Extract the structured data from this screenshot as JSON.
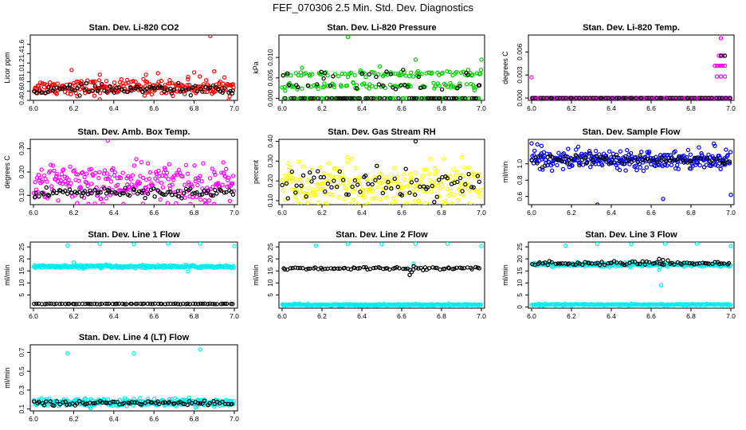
{
  "page_title": "FEF_070306  2.5 Min. Std. Dev. Diagnostics",
  "colors": {
    "red": "#ff0000",
    "green": "#00cc00",
    "magenta": "#ff00ff",
    "yellow": "#ffff00",
    "blue": "#0000ff",
    "cyan": "#00eeee",
    "black": "#000000"
  },
  "chart_data": [
    {
      "type": "scatter",
      "title": "Stan. Dev. Li-820 CO2",
      "ylabel": "Licor ppm",
      "xlim": [
        6.0,
        7.0
      ],
      "x_ticks": [
        "6.0",
        "6.2",
        "6.4",
        "6.6",
        "6.8",
        "7.0"
      ],
      "ylim": [
        0.4,
        1.8
      ],
      "y_ticks": [
        "0.4",
        "0.6",
        "0.8",
        "1.0",
        "1.2",
        "1.4",
        "1.6"
      ],
      "series": [
        {
          "name": "main",
          "color": "red",
          "mean": 0.68,
          "spread": 0.08,
          "n": 240,
          "outliers": [
            [
              6.88,
              1.78
            ],
            [
              6.19,
              1.05
            ],
            [
              6.8,
              1.0
            ],
            [
              6.33,
              0.95
            ],
            [
              6.9,
              1.02
            ],
            [
              6.62,
              0.98
            ],
            [
              6.33,
              0.42
            ],
            [
              6.56,
              0.95
            ],
            [
              6.77,
              0.9
            ]
          ]
        },
        {
          "name": "second",
          "color": "black",
          "mean": 0.63,
          "spread": 0.05,
          "n": 80,
          "outliers": [
            [
              6.99,
              0.55
            ]
          ]
        }
      ]
    },
    {
      "type": "scatter",
      "title": "Stan. Dev. Li-820 Pressure",
      "ylabel": "kPa",
      "xlim": [
        6.0,
        7.0
      ],
      "x_ticks": [
        "6.0",
        "6.2",
        "6.4",
        "6.6",
        "6.8",
        "7.0"
      ],
      "ylim": [
        -0.0005,
        0.0155
      ],
      "y_ticks": [
        "0.000",
        "0.005",
        "0.010"
      ],
      "series": [
        {
          "name": "main",
          "color": "green",
          "mode": "band",
          "levels": [
            0.0,
            0.003,
            0.006
          ],
          "n": 260,
          "outliers": [
            [
              6.33,
              0.015
            ],
            [
              6.67,
              0.0095
            ],
            [
              7.0,
              0.0095
            ],
            [
              6.1,
              0.0075
            ],
            [
              6.49,
              0.0078
            ]
          ]
        },
        {
          "name": "second",
          "color": "black",
          "mode": "band",
          "levels": [
            0.0,
            0.0,
            0.0,
            0.003,
            0.006
          ],
          "n": 90,
          "outliers": []
        }
      ]
    },
    {
      "type": "scatter",
      "title": "Stan. Dev. Li-820 Temp.",
      "ylabel": "degrees C",
      "xlim": [
        6.0,
        7.0
      ],
      "x_ticks": [
        "6.0",
        "6.2",
        "6.4",
        "6.6",
        "6.8",
        "7.0"
      ],
      "ylim": [
        -0.0003,
        0.0082
      ],
      "y_ticks": [
        "0.000",
        "0.003",
        "0.006"
      ],
      "series": [
        {
          "name": "main",
          "color": "magenta",
          "mode": "flat",
          "levels": [
            0.0
          ],
          "n": 220,
          "outliers": [
            [
              6.0,
              0.0027
            ],
            [
              6.92,
              0.0042
            ],
            [
              6.93,
              0.0042
            ],
            [
              6.94,
              0.0042
            ],
            [
              6.95,
              0.0042
            ],
            [
              6.96,
              0.0042
            ],
            [
              6.97,
              0.0042
            ],
            [
              6.93,
              0.0028
            ],
            [
              6.95,
              0.0028
            ],
            [
              6.97,
              0.0028
            ],
            [
              6.94,
              0.0055
            ],
            [
              6.96,
              0.0055
            ],
            [
              6.95,
              0.0078
            ],
            [
              6.92,
              0.0042
            ]
          ]
        },
        {
          "name": "second",
          "color": "black",
          "mode": "flat",
          "levels": [
            0.0
          ],
          "n": 60,
          "outliers": [
            [
              6.95,
              0.0055
            ],
            [
              6.97,
              0.0055
            ]
          ]
        }
      ]
    },
    {
      "type": "scatter",
      "title": "Stan. Dev. Amb. Box Temp.",
      "ylabel": "degrees C",
      "xlim": [
        6.0,
        7.0
      ],
      "x_ticks": [
        "6.0",
        "6.2",
        "6.4",
        "6.6",
        "6.8",
        "7.0"
      ],
      "ylim": [
        0.06,
        0.34
      ],
      "y_ticks": [
        "0.10",
        "0.20",
        "0.30"
      ],
      "series": [
        {
          "name": "main",
          "color": "magenta",
          "mean": 0.15,
          "spread": 0.045,
          "n": 260,
          "outliers": [
            [
              6.37,
              0.335
            ]
          ]
        },
        {
          "name": "second",
          "color": "black",
          "mean": 0.112,
          "spread": 0.01,
          "n": 90,
          "outliers": []
        }
      ]
    },
    {
      "type": "scatter",
      "title": "Stan. Dev. Gas Stream RH",
      "ylabel": "percent",
      "xlim": [
        6.0,
        7.0
      ],
      "x_ticks": [
        "6.0",
        "6.2",
        "6.4",
        "6.6",
        "6.8",
        "7.0"
      ],
      "ylim": [
        0.08,
        0.41
      ],
      "y_ticks": [
        "0.10",
        "0.20",
        "0.30",
        "0.40"
      ],
      "series": [
        {
          "name": "main",
          "color": "yellow",
          "mean": 0.175,
          "spread": 0.055,
          "n": 250,
          "outliers": []
        },
        {
          "name": "second",
          "color": "black",
          "mean": 0.18,
          "spread": 0.04,
          "n": 70,
          "outliers": [
            [
              6.67,
              0.4
            ]
          ]
        }
      ]
    },
    {
      "type": "scatter",
      "title": "Stan. Dev. Sample Flow",
      "ylabel": "ml/min",
      "xlim": [
        6.0,
        7.0
      ],
      "x_ticks": [
        "6.0",
        "6.2",
        "6.4",
        "6.6",
        "6.8",
        "7.0"
      ],
      "ylim": [
        0.5,
        1.3
      ],
      "y_ticks": [
        "0.6",
        "0.8",
        "1.0"
      ],
      "series": [
        {
          "name": "main",
          "color": "blue",
          "mean": 1.06,
          "spread": 0.055,
          "n": 280,
          "outliers": [
            [
              6.0,
              1.25
            ],
            [
              6.33,
              0.5
            ],
            [
              6.66,
              0.57
            ],
            [
              7.0,
              0.62
            ],
            [
              6.05,
              1.22
            ],
            [
              6.92,
              1.22
            ]
          ]
        },
        {
          "name": "second",
          "color": "black",
          "mean": 1.05,
          "spread": 0.03,
          "n": 80,
          "outliers": []
        }
      ]
    },
    {
      "type": "scatter",
      "title": "Stan. Dev. Line 1 Flow",
      "ylabel": "ml/min",
      "xlim": [
        6.0,
        7.0
      ],
      "x_ticks": [
        "6.0",
        "6.2",
        "6.4",
        "6.6",
        "6.8",
        "7.0"
      ],
      "ylim": [
        -0.5,
        27
      ],
      "y_ticks": [
        "5",
        "10",
        "15",
        "20",
        "25"
      ],
      "series": [
        {
          "name": "main",
          "color": "cyan",
          "mean": 16.8,
          "spread": 0.3,
          "n": 280,
          "outliers": [
            [
              6.17,
              25.5
            ],
            [
              6.33,
              26.2
            ],
            [
              6.5,
              26.1
            ],
            [
              6.67,
              26.3
            ],
            [
              6.83,
              26.3
            ],
            [
              7.0,
              25.3
            ],
            [
              6.77,
              14.8
            ],
            [
              6.2,
              18.5
            ]
          ]
        },
        {
          "name": "second",
          "color": "black",
          "mean": 1.3,
          "spread": 0.05,
          "n": 80,
          "outliers": []
        }
      ]
    },
    {
      "type": "scatter",
      "title": "Stan. Dev. Line 2 Flow",
      "ylabel": "ml/min",
      "xlim": [
        6.0,
        7.0
      ],
      "x_ticks": [
        "6.0",
        "6.2",
        "6.4",
        "6.6",
        "6.8",
        "7.0"
      ],
      "ylim": [
        -0.5,
        27
      ],
      "y_ticks": [
        "5",
        "10",
        "15",
        "20",
        "25"
      ],
      "series": [
        {
          "name": "main",
          "color": "cyan",
          "mean": 0.9,
          "spread": 0.15,
          "n": 280,
          "outliers": [
            [
              6.17,
              25.5
            ],
            [
              6.33,
              26.2
            ],
            [
              6.5,
              26.1
            ],
            [
              6.67,
              26.3
            ],
            [
              6.83,
              26.3
            ],
            [
              7.0,
              25.3
            ],
            [
              6.66,
              18.0
            ],
            [
              6.64,
              15.5
            ]
          ]
        },
        {
          "name": "second",
          "color": "black",
          "mean": 16.1,
          "spread": 0.3,
          "n": 80,
          "outliers": [
            [
              6.64,
              13.3
            ],
            [
              6.65,
              14.5
            ],
            [
              6.66,
              17.0
            ]
          ]
        }
      ]
    },
    {
      "type": "scatter",
      "title": "Stan. Dev. Line 3 Flow",
      "ylabel": "ml/min",
      "xlim": [
        6.0,
        7.0
      ],
      "x_ticks": [
        "6.0",
        "6.2",
        "6.4",
        "6.6",
        "6.8",
        "7.0"
      ],
      "ylim": [
        -0.5,
        27
      ],
      "y_ticks": [
        "0",
        "5",
        "10",
        "15",
        "20",
        "25"
      ],
      "series": [
        {
          "name": "main",
          "color": "cyan",
          "mean": 17.6,
          "spread": 0.4,
          "n": 280,
          "outliers": [
            [
              6.17,
              25.5
            ],
            [
              6.33,
              26.2
            ],
            [
              6.5,
              26.1
            ],
            [
              6.67,
              26.3
            ],
            [
              6.83,
              26.3
            ],
            [
              7.0,
              25.3
            ],
            [
              6.65,
              9.0
            ],
            [
              6.64,
              15.5
            ]
          ]
        },
        {
          "name": "low",
          "color": "cyan",
          "mean": 1.0,
          "spread": 0.15,
          "n": 200,
          "outliers": []
        },
        {
          "name": "second",
          "color": "black",
          "mean": 18.2,
          "spread": 0.35,
          "n": 80,
          "outliers": [
            [
              6.64,
              20.0
            ],
            [
              6.66,
              19.5
            ]
          ]
        }
      ]
    },
    {
      "type": "scatter",
      "title": "Stan. Dev. Line 4 (LT) Flow",
      "ylabel": "ml/min",
      "xlim": [
        6.0,
        7.0
      ],
      "x_ticks": [
        "6.0",
        "6.2",
        "6.4",
        "6.6",
        "6.8",
        "7.0"
      ],
      "ylim": [
        0.08,
        0.78
      ],
      "y_ticks": [
        "0.1",
        "0.3",
        "0.5",
        "0.7"
      ],
      "series": [
        {
          "name": "main",
          "color": "cyan",
          "mean": 0.17,
          "spread": 0.02,
          "n": 280,
          "outliers": [
            [
              6.17,
              0.69
            ],
            [
              6.5,
              0.69
            ],
            [
              6.83,
              0.73
            ]
          ]
        },
        {
          "name": "second",
          "color": "black",
          "mean": 0.163,
          "spread": 0.012,
          "n": 80,
          "outliers": []
        }
      ]
    }
  ]
}
